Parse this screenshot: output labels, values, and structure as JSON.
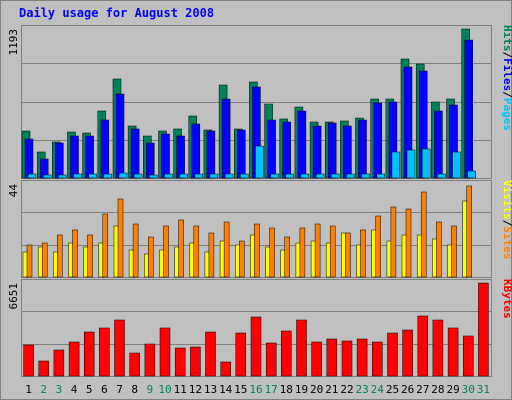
{
  "colors": {
    "background": "#c0c0c0",
    "border": "#808080",
    "title": "#0000ff",
    "grid": "#808080",
    "hits": "#00805c",
    "files": "#0000ff",
    "pages": "#00c0ff",
    "visits": "#ffff00",
    "sites": "#ff8000",
    "kbytes": "#ff0000",
    "weekday_label": "#000000",
    "weekend_label": "#00805c"
  },
  "chart_data": {
    "type": "bar",
    "title": "Daily usage for August 2008",
    "categories": [
      "1",
      "2",
      "3",
      "4",
      "5",
      "6",
      "7",
      "8",
      "9",
      "10",
      "11",
      "12",
      "13",
      "14",
      "15",
      "16",
      "17",
      "18",
      "19",
      "20",
      "21",
      "22",
      "23",
      "24",
      "25",
      "26",
      "27",
      "28",
      "29",
      "30",
      "31"
    ],
    "weekend_days": [
      "2",
      "3",
      "9",
      "10",
      "16",
      "17",
      "23",
      "24",
      "30",
      "31"
    ],
    "panels": [
      {
        "ymax_label": "1193",
        "ylim": [
          0,
          1193
        ],
        "legend": [
          {
            "text": "Hits",
            "color": "#00805c"
          },
          {
            "text": "/",
            "color": "#000000"
          },
          {
            "text": "Files",
            "color": "#0000ff"
          },
          {
            "text": "/",
            "color": "#000000"
          },
          {
            "text": "Pages",
            "color": "#00c0ff"
          }
        ],
        "series": [
          {
            "name": "Hits",
            "color": "#00805c",
            "values": [
              380,
              205,
              290,
              370,
              360,
              540,
              795,
              415,
              335,
              375,
              390,
              495,
              385,
              745,
              395,
              765,
              590,
              475,
              565,
              445,
              445,
              460,
              480,
              635,
              635,
              955,
              910,
              610,
              635,
              1193,
              0
            ]
          },
          {
            "name": "Files",
            "color": "#0000ff",
            "values": [
              315,
              150,
              280,
              335,
              335,
              465,
              675,
              390,
              280,
              350,
              335,
              430,
              375,
              630,
              385,
              730,
              465,
              445,
              535,
              415,
              440,
              420,
              465,
              600,
              605,
              885,
              860,
              540,
              585,
              1105,
              0
            ]
          },
          {
            "name": "Pages",
            "color": "#00c0ff",
            "values": [
              30,
              25,
              25,
              30,
              30,
              35,
              40,
              30,
              25,
              30,
              30,
              30,
              30,
              35,
              30,
              260,
              30,
              30,
              30,
              30,
              30,
              30,
              30,
              30,
              210,
              225,
              230,
              35,
              210,
              55,
              0
            ]
          }
        ]
      },
      {
        "ymax_label": "44",
        "ylim": [
          0,
          44
        ],
        "legend": [
          {
            "text": "Visits",
            "color": "#ffff00"
          },
          {
            "text": "/",
            "color": "#000000"
          },
          {
            "text": "Sites",
            "color": "#ff8000"
          }
        ],
        "series": [
          {
            "name": "Visits",
            "color": "#ffff00",
            "values": [
              12,
              14,
              12,
              16,
              14,
              16,
              24,
              13,
              11,
              13,
              14,
              16,
              12,
              17,
              15,
              20,
              14,
              13,
              16,
              17,
              16,
              21,
              15,
              22,
              17,
              20,
              20,
              18,
              15,
              36,
              0
            ]
          },
          {
            "name": "Sites",
            "color": "#ff8000",
            "values": [
              15,
              16,
              20,
              22,
              20,
              30,
              37,
              25,
              19,
              24,
              27,
              24,
              21,
              26,
              17,
              25,
              23,
              19,
              23,
              25,
              24,
              21,
              22,
              29,
              33,
              32,
              40,
              26,
              24,
              43,
              0
            ]
          }
        ]
      },
      {
        "ymax_label": "6651",
        "ylim": [
          0,
          6651
        ],
        "legend": [
          {
            "text": "KBytes",
            "color": "#ff0000"
          }
        ],
        "series": [
          {
            "name": "KBytes",
            "color": "#ff0000",
            "values": [
              2250,
              1100,
              1850,
              2400,
              3150,
              3400,
              4000,
              1650,
              2300,
              3400,
              2000,
              2100,
              3150,
              1000,
              3100,
              4200,
              2350,
              3200,
              4000,
              2400,
              2650,
              2500,
              2650,
              2400,
              3050,
              3300,
              4300,
              4000,
              3400,
              2850,
              6651
            ]
          }
        ]
      }
    ]
  }
}
